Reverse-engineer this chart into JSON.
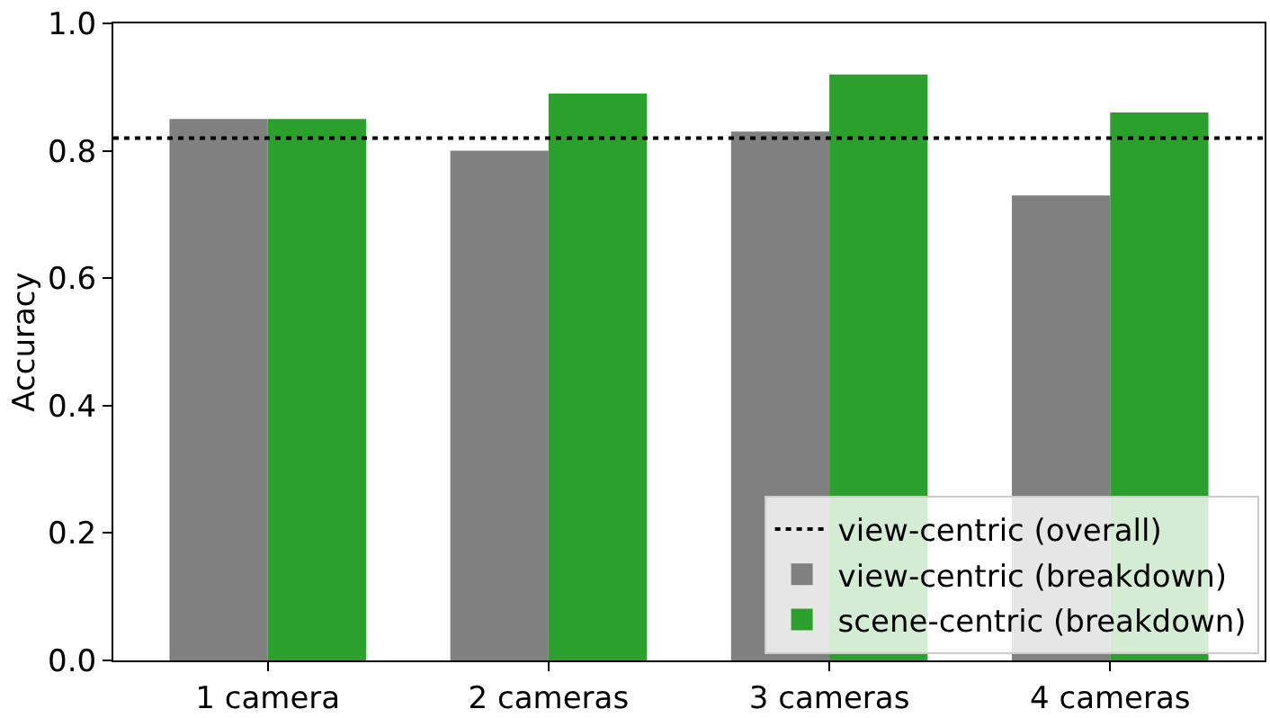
{
  "chart_data": {
    "type": "bar",
    "ylabel": "Accuracy",
    "categories": [
      "1 camera",
      "2 cameras",
      "3 cameras",
      "4 cameras"
    ],
    "series": [
      {
        "name": "view-centric (breakdown)",
        "color": "#808080",
        "values": [
          0.85,
          0.8,
          0.83,
          0.73
        ]
      },
      {
        "name": "scene-centric (breakdown)",
        "color": "#2ca02c",
        "values": [
          0.85,
          0.89,
          0.92,
          0.86
        ]
      }
    ],
    "ref_lines": [
      {
        "axis": "y",
        "value": 0.82,
        "label": "view-centric (overall)",
        "color": "#000000",
        "line_style": "dotted"
      }
    ],
    "ylim": [
      0,
      1.0
    ],
    "yticks": [
      {
        "value": 0,
        "label": "0.0"
      },
      {
        "value": 0.2,
        "label": "0.2"
      },
      {
        "value": 0.4,
        "label": "0.4"
      },
      {
        "value": 0.6,
        "label": "0.6"
      },
      {
        "value": 0.8,
        "label": "0.8"
      },
      {
        "value": 1.0,
        "label": "1.0"
      }
    ],
    "grid": false,
    "legend": "bottom right"
  }
}
